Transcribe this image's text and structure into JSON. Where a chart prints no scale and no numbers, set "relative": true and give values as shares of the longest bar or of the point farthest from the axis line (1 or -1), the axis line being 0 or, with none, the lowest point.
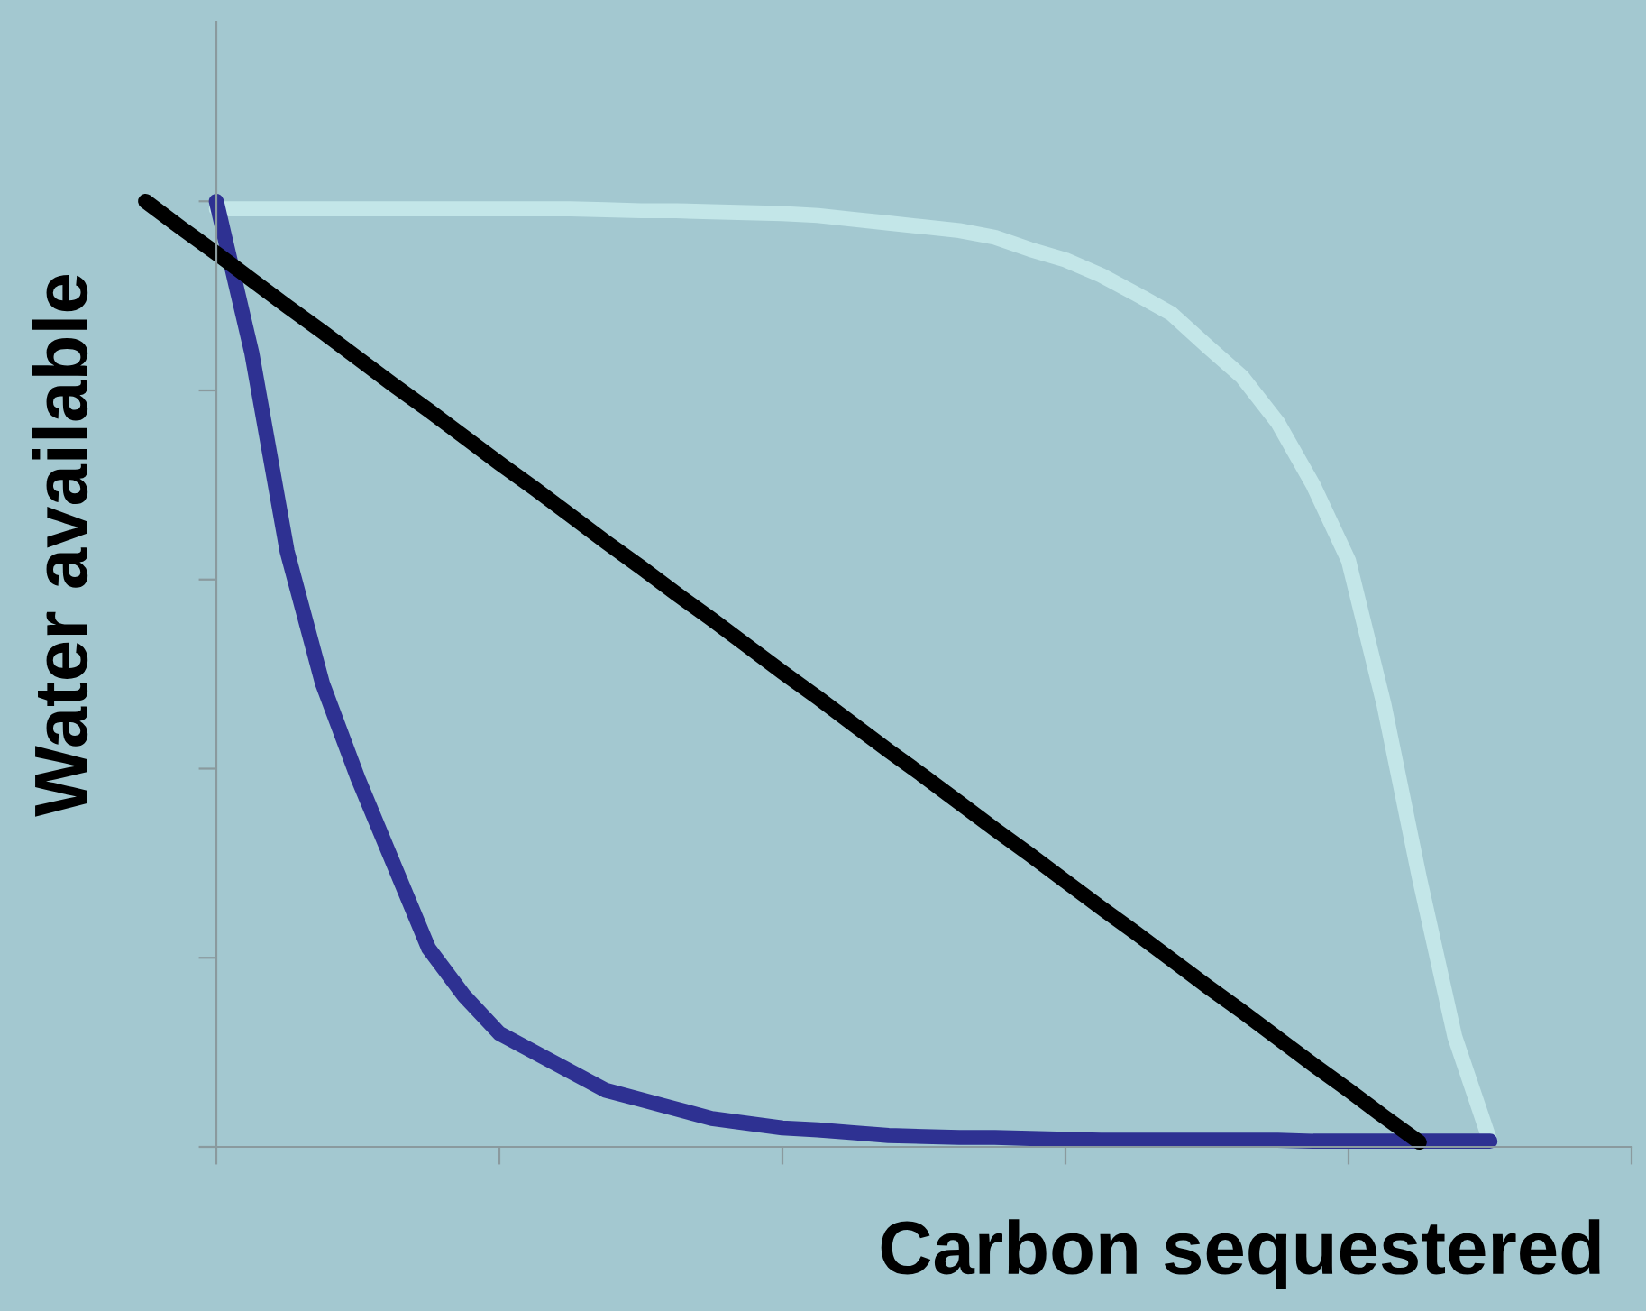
{
  "chart_data": {
    "type": "line",
    "xlabel": "Carbon sequestered",
    "ylabel": "Water available",
    "relative": true,
    "grid": false,
    "marker": "none",
    "line_style": "solid",
    "categories": [
      null,
      null,
      null,
      null,
      null,
      null,
      null,
      null,
      null,
      null,
      null,
      null,
      null,
      null,
      null,
      null,
      null,
      null,
      null,
      null,
      null,
      null,
      null,
      null,
      null,
      null,
      null,
      null,
      null,
      null,
      null,
      null,
      null,
      null,
      null,
      null,
      null,
      null,
      null
    ],
    "series": [
      {
        "color": "#c3e6e8",
        "values": [
          null,
          null,
          0.992,
          0.992,
          0.992,
          0.992,
          0.992,
          0.992,
          0.992,
          0.992,
          0.992,
          0.992,
          0.992,
          0.991,
          0.99,
          0.99,
          0.989,
          0.988,
          0.987,
          0.985,
          0.981,
          0.977,
          0.973,
          0.969,
          0.962,
          0.949,
          0.938,
          0.922,
          0.902,
          0.881,
          0.847,
          0.814,
          0.766,
          0.7,
          0.62,
          0.468,
          0.285,
          0.117,
          0.006
        ]
      },
      {
        "color": "#2e3192",
        "values": [
          null,
          null,
          1.0,
          0.84,
          0.63,
          0.49,
          0.39,
          0.3,
          0.21,
          0.16,
          0.12,
          0.1,
          0.08,
          0.06,
          0.05,
          0.04,
          0.03,
          0.025,
          0.02,
          0.018,
          0.015,
          0.012,
          0.011,
          0.01,
          0.01,
          0.009,
          0.008,
          0.007,
          0.007,
          0.007,
          0.007,
          0.007,
          0.007,
          0.006,
          0.006,
          0.006,
          0.006,
          0.006,
          0.006
        ]
      },
      {
        "color": "#000000",
        "values": [
          1.0,
          0.972,
          0.945,
          0.917,
          0.889,
          0.862,
          0.834,
          0.806,
          0.779,
          0.751,
          0.723,
          0.696,
          0.668,
          0.64,
          0.613,
          0.585,
          0.558,
          0.53,
          0.502,
          0.475,
          0.447,
          0.419,
          0.392,
          0.364,
          0.336,
          0.309,
          0.281,
          0.253,
          0.226,
          0.198,
          0.17,
          0.143,
          0.115,
          0.087,
          0.06,
          0.032,
          0.005,
          null,
          null
        ]
      }
    ]
  }
}
